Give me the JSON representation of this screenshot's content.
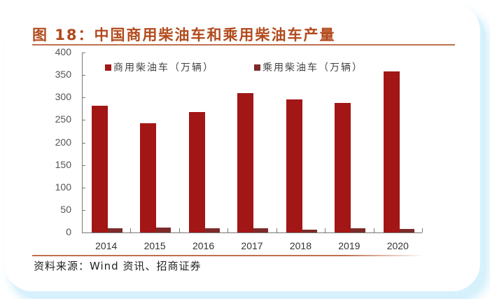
{
  "figure": {
    "title": "图 18：中国商用柴油车和乘用柴油车产量",
    "source": "资料来源：Wind 资讯、招商证券"
  },
  "colors": {
    "series1": "#a31616",
    "series2": "#7d2a2a",
    "title": "#b24a1c",
    "rule": "#c0704e"
  },
  "chart_data": {
    "type": "bar",
    "title": "图 18：中国商用柴油车和乘用柴油车产量",
    "xlabel": "",
    "ylabel": "",
    "categories": [
      "2014",
      "2015",
      "2016",
      "2017",
      "2018",
      "2019",
      "2020"
    ],
    "series": [
      {
        "name": "商用柴油车（万辆）",
        "values": [
          282,
          243,
          268,
          310,
          296,
          288,
          358
        ]
      },
      {
        "name": "乘用柴油车（万辆）",
        "values": [
          9,
          11,
          9,
          10,
          7,
          9,
          8
        ]
      }
    ],
    "ylim": [
      0,
      400
    ],
    "yticks": [
      "0",
      "50",
      "100",
      "150",
      "200",
      "250",
      "300",
      "350",
      "400"
    ],
    "grid": false,
    "legend_position": "top"
  },
  "legend": {
    "items": [
      {
        "label": "商用柴油车（万辆）"
      },
      {
        "label": "乘用柴油车（万辆）"
      }
    ]
  }
}
